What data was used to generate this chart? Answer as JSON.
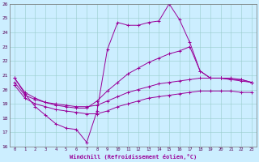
{
  "xlabel": "Windchill (Refroidissement éolien,°C)",
  "background_color": "#cceeff",
  "grid_color": "#99cccc",
  "line_color": "#990099",
  "ylim": [
    16,
    26
  ],
  "xlim": [
    0,
    23
  ],
  "line1_jagged": [
    20.8,
    19.7,
    18.8,
    18.2,
    17.6,
    17.3,
    17.2,
    16.3,
    18.5,
    22.8,
    24.7,
    24.5,
    24.5,
    24.7,
    24.8,
    26.0,
    24.9,
    23.3,
    21.3,
    20.8,
    20.8,
    20.7,
    20.7,
    20.5
  ],
  "line2_upper": [
    20.8,
    19.8,
    19.4,
    19.1,
    18.9,
    18.8,
    18.7,
    18.7,
    19.2,
    19.9,
    20.5,
    21.1,
    21.5,
    21.9,
    22.2,
    22.5,
    22.7,
    23.0,
    21.3,
    20.8,
    20.8,
    20.8,
    20.7,
    20.5
  ],
  "line3_mid": [
    20.5,
    19.6,
    19.3,
    19.1,
    19.0,
    18.9,
    18.8,
    18.8,
    18.9,
    19.2,
    19.5,
    19.8,
    20.0,
    20.2,
    20.4,
    20.5,
    20.6,
    20.7,
    20.8,
    20.8,
    20.8,
    20.7,
    20.6,
    20.5
  ],
  "line4_lower": [
    20.3,
    19.4,
    19.0,
    18.8,
    18.6,
    18.5,
    18.4,
    18.3,
    18.3,
    18.5,
    18.8,
    19.0,
    19.2,
    19.4,
    19.5,
    19.6,
    19.7,
    19.8,
    19.9,
    19.9,
    19.9,
    19.9,
    19.8,
    19.8
  ]
}
